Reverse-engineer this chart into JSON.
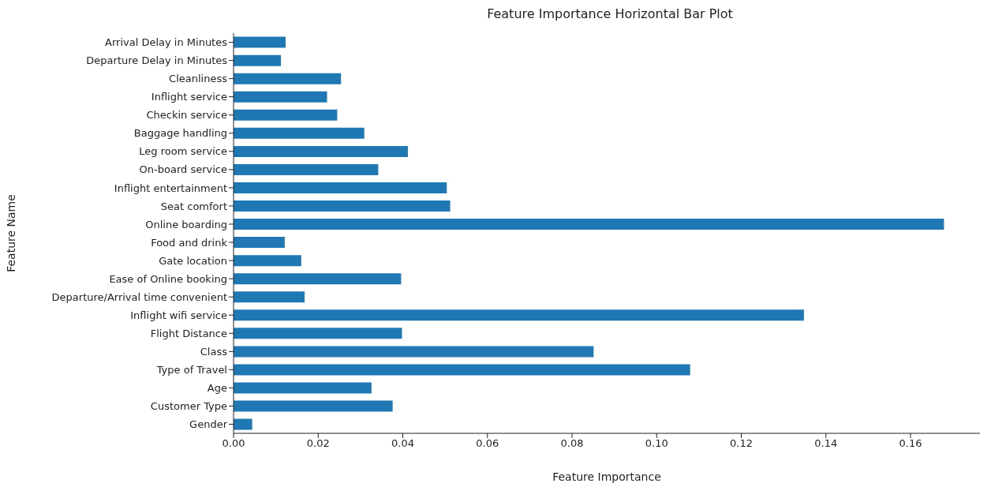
{
  "chart_data": {
    "type": "bar",
    "orientation": "horizontal",
    "title": "Feature Importance Horizontal Bar Plot",
    "xlabel": "Feature Importance",
    "ylabel": "Feature Name",
    "categories": [
      "Arrival Delay in Minutes",
      "Departure Delay in Minutes",
      "Cleanliness",
      "Inflight service",
      "Checkin service",
      "Baggage handling",
      "Leg room service",
      "On-board service",
      "Inflight entertainment",
      "Seat comfort",
      "Online boarding",
      "Food and drink",
      "Gate location",
      "Ease of Online booking",
      "Departure/Arrival time convenient",
      "Inflight wifi service",
      "Flight Distance",
      "Class",
      "Type of Travel",
      "Age",
      "Customer Type",
      "Gender"
    ],
    "values": [
      0.0123,
      0.0112,
      0.0254,
      0.0221,
      0.0245,
      0.0309,
      0.0412,
      0.0342,
      0.0504,
      0.0512,
      0.1679,
      0.0121,
      0.016,
      0.0396,
      0.0168,
      0.1348,
      0.0398,
      0.0851,
      0.1079,
      0.0326,
      0.0376,
      0.0044
    ],
    "color": "#1f77b4",
    "xlim": [
      0,
      0.1764
    ],
    "xticks": [
      {
        "value": 0,
        "label": "0.00"
      },
      {
        "value": 0.02,
        "label": "0.02"
      },
      {
        "value": 0.04,
        "label": "0.04"
      },
      {
        "value": 0.06,
        "label": "0.06"
      },
      {
        "value": 0.08,
        "label": "0.08"
      },
      {
        "value": 0.1,
        "label": "0.10"
      },
      {
        "value": 0.12,
        "label": "0.12"
      },
      {
        "value": 0.14,
        "label": "0.14"
      },
      {
        "value": 0.16,
        "label": "0.16"
      }
    ],
    "grid": false
  }
}
